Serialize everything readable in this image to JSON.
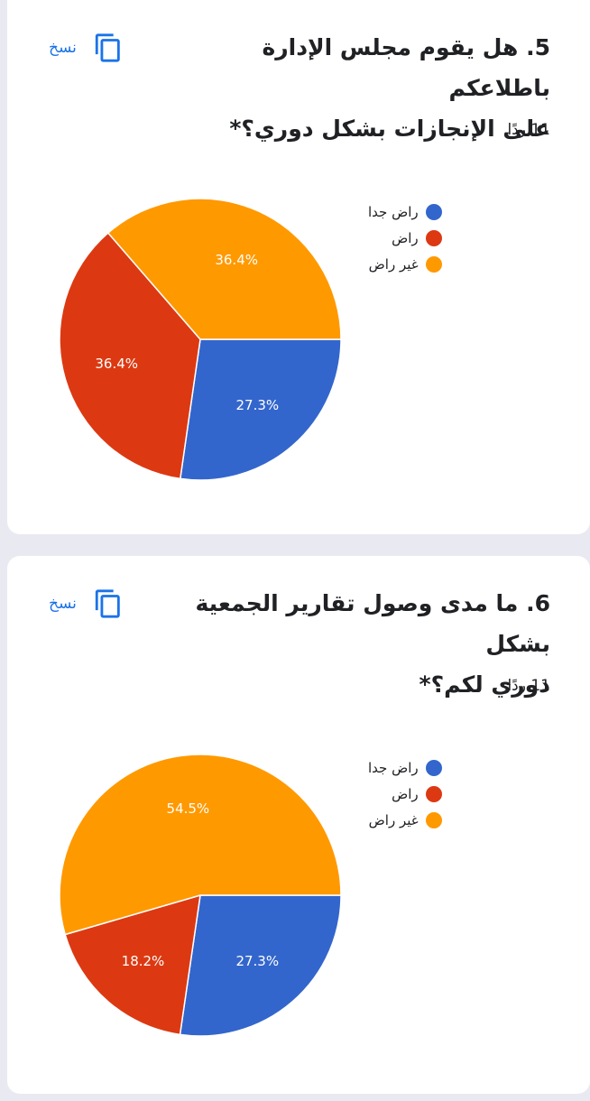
{
  "copy_label": "نسخ",
  "colors": {
    "accent": "#1a73e8",
    "series": [
      "#3366cc",
      "#dc3912",
      "#ff9900"
    ]
  },
  "questions": [
    {
      "title_line1": "5. هل يقوم مجلس الإدارة باطلاعكم",
      "title_line2": "على الإنجازات بشكل دوري؟*",
      "responses": "11 ردًا"
    },
    {
      "title_line1": "6. ما مدى وصول تقارير الجمعية بشكل",
      "title_line2": "دوري لكم؟*",
      "responses": "11 ردًا"
    }
  ],
  "chart_data": [
    {
      "type": "pie",
      "categories": [
        "راض جدا",
        "راض",
        "غير راض"
      ],
      "values": [
        27.3,
        36.4,
        36.4
      ],
      "labels": [
        "27.3%",
        "36.4%",
        "36.4%"
      ],
      "legend": "right"
    },
    {
      "type": "pie",
      "categories": [
        "راض جدا",
        "راض",
        "غير راض"
      ],
      "values": [
        27.3,
        18.2,
        54.5
      ],
      "labels": [
        "27.3%",
        "18.2%",
        "54.5%"
      ],
      "legend": "right"
    }
  ]
}
